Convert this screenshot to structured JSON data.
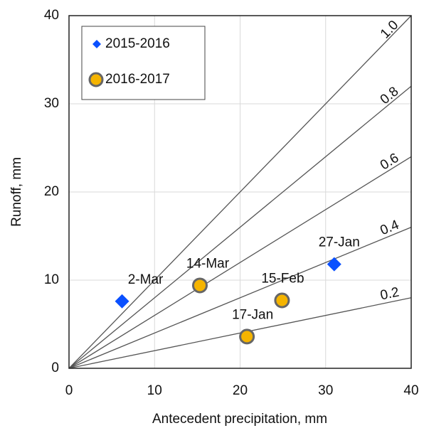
{
  "chart_data": {
    "type": "scatter",
    "x_label": "Antecedent precipitation, mm",
    "y_label": "Runoff, mm",
    "xlim": [
      0,
      40
    ],
    "ylim": [
      0,
      40
    ],
    "xticks": [
      0,
      10,
      20,
      30,
      40
    ],
    "yticks": [
      0,
      10,
      20,
      30,
      40
    ],
    "grid": true,
    "legend": "upper left",
    "ratio_lines": [
      {
        "value": 1.0,
        "label": "1.0"
      },
      {
        "value": 0.8,
        "label": "0.8"
      },
      {
        "value": 0.6,
        "label": "0.6"
      },
      {
        "value": 0.4,
        "label": "0.4"
      },
      {
        "value": 0.2,
        "label": "0.2"
      }
    ],
    "series": [
      {
        "name": "2015-2016",
        "color": "#0a50ff",
        "marker": "diamond",
        "x": [
          6.2,
          31.0
        ],
        "values": [
          7.6,
          11.8
        ],
        "point_labels": [
          "2-Mar",
          "27-Jan"
        ]
      },
      {
        "name": "2016-2017",
        "color": "#f5b400",
        "marker": "circle",
        "x": [
          15.3,
          24.9,
          20.8
        ],
        "values": [
          9.4,
          7.7,
          3.6
        ],
        "point_labels": [
          "14-Mar",
          "15-Feb",
          "17-Jan"
        ]
      }
    ]
  }
}
